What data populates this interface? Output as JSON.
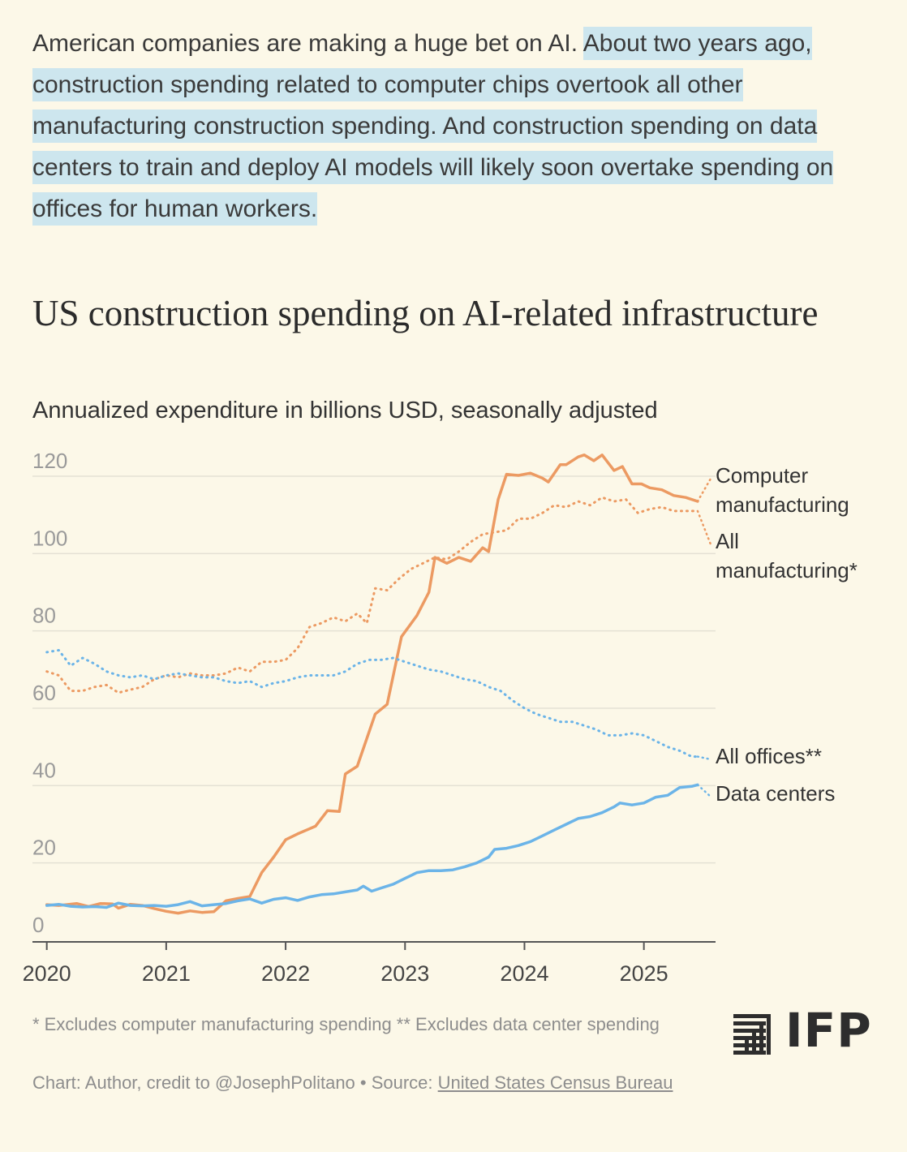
{
  "intro": {
    "plain": "American companies are making a huge bet on AI. ",
    "highlighted": "About two years ago, construction spending related to computer chips overtook all other manufacturing construction spending. And construction spending on data centers to train and deploy AI models will likely soon overtake spending on offices for human workers."
  },
  "colors": {
    "background": "#fcf8e8",
    "highlight": "#cde6ee",
    "orange": "#ec9a62",
    "blue": "#6bb4e8",
    "grid": "#e4e1d4",
    "tick": "#9a9a9a"
  },
  "chart_data": {
    "type": "line",
    "title": "US construction spending on AI-related infrastructure",
    "subtitle": "Annualized expenditure in billions USD, seasonally adjusted",
    "ylim": [
      0,
      120
    ],
    "yticks": [
      "0",
      "20",
      "40",
      "60",
      "80",
      "100",
      "120"
    ],
    "xlim": [
      2019.88,
      2025.6
    ],
    "xticks": [
      "2020",
      "2021",
      "2022",
      "2023",
      "2024",
      "2025"
    ],
    "grid": true,
    "series": [
      {
        "name": "Computer manufacturing",
        "label_lines": [
          "Computer",
          "manufacturing"
        ],
        "color": "orange",
        "style": "solid",
        "points": [
          [
            2020.0,
            9.2
          ],
          [
            2020.1,
            9.0
          ],
          [
            2020.25,
            9.5
          ],
          [
            2020.35,
            8.7
          ],
          [
            2020.45,
            9.5
          ],
          [
            2020.55,
            9.4
          ],
          [
            2020.6,
            8.3
          ],
          [
            2020.7,
            9.3
          ],
          [
            2020.8,
            9.0
          ],
          [
            2020.9,
            8.2
          ],
          [
            2021.0,
            7.5
          ],
          [
            2021.1,
            7.0
          ],
          [
            2021.2,
            7.6
          ],
          [
            2021.3,
            7.2
          ],
          [
            2021.4,
            7.4
          ],
          [
            2021.5,
            10.2
          ],
          [
            2021.6,
            10.8
          ],
          [
            2021.7,
            11.3
          ],
          [
            2021.8,
            17.5
          ],
          [
            2021.9,
            21.5
          ],
          [
            2022.0,
            26.0
          ],
          [
            2022.1,
            27.5
          ],
          [
            2022.25,
            29.5
          ],
          [
            2022.35,
            33.5
          ],
          [
            2022.45,
            33.3
          ],
          [
            2022.5,
            43.0
          ],
          [
            2022.6,
            45.0
          ],
          [
            2022.75,
            58.5
          ],
          [
            2022.85,
            61.0
          ],
          [
            2022.97,
            78.5
          ],
          [
            2023.1,
            84.0
          ],
          [
            2023.2,
            90.0
          ],
          [
            2023.25,
            99.0
          ],
          [
            2023.35,
            97.5
          ],
          [
            2023.45,
            99.0
          ],
          [
            2023.55,
            98.0
          ],
          [
            2023.65,
            101.5
          ],
          [
            2023.7,
            100.5
          ],
          [
            2023.78,
            114.0
          ],
          [
            2023.85,
            120.5
          ],
          [
            2023.95,
            120.2
          ],
          [
            2024.05,
            120.8
          ],
          [
            2024.15,
            119.5
          ],
          [
            2024.2,
            118.5
          ],
          [
            2024.3,
            123.0
          ],
          [
            2024.35,
            123.0
          ],
          [
            2024.45,
            125.0
          ],
          [
            2024.5,
            125.5
          ],
          [
            2024.58,
            124.0
          ],
          [
            2024.65,
            125.5
          ],
          [
            2024.75,
            121.5
          ],
          [
            2024.82,
            122.5
          ],
          [
            2024.9,
            118.0
          ],
          [
            2024.98,
            118.0
          ],
          [
            2025.05,
            117.0
          ],
          [
            2025.15,
            116.5
          ],
          [
            2025.25,
            115.0
          ],
          [
            2025.35,
            114.5
          ],
          [
            2025.45,
            113.5
          ]
        ]
      },
      {
        "name": "All manufacturing*",
        "label_lines": [
          "All",
          "manufacturing*"
        ],
        "color": "orange",
        "style": "dotted",
        "points": [
          [
            2020.0,
            69.5
          ],
          [
            2020.1,
            68.5
          ],
          [
            2020.2,
            64.5
          ],
          [
            2020.3,
            64.5
          ],
          [
            2020.4,
            65.5
          ],
          [
            2020.5,
            66.0
          ],
          [
            2020.6,
            64.0
          ],
          [
            2020.7,
            64.8
          ],
          [
            2020.8,
            65.5
          ],
          [
            2020.9,
            67.5
          ],
          [
            2021.0,
            68.5
          ],
          [
            2021.1,
            68.0
          ],
          [
            2021.2,
            69.0
          ],
          [
            2021.3,
            68.5
          ],
          [
            2021.4,
            68.5
          ],
          [
            2021.5,
            69.0
          ],
          [
            2021.6,
            70.5
          ],
          [
            2021.7,
            69.5
          ],
          [
            2021.8,
            72.0
          ],
          [
            2021.9,
            72.0
          ],
          [
            2022.0,
            72.5
          ],
          [
            2022.1,
            75.5
          ],
          [
            2022.2,
            81.0
          ],
          [
            2022.3,
            82.0
          ],
          [
            2022.4,
            83.5
          ],
          [
            2022.5,
            82.5
          ],
          [
            2022.6,
            84.5
          ],
          [
            2022.68,
            82.0
          ],
          [
            2022.75,
            91.0
          ],
          [
            2022.85,
            90.5
          ],
          [
            2022.95,
            93.5
          ],
          [
            2023.05,
            96.0
          ],
          [
            2023.15,
            97.5
          ],
          [
            2023.25,
            99.0
          ],
          [
            2023.35,
            98.5
          ],
          [
            2023.45,
            100.5
          ],
          [
            2023.55,
            103.0
          ],
          [
            2023.65,
            105.0
          ],
          [
            2023.75,
            105.5
          ],
          [
            2023.85,
            106.0
          ],
          [
            2023.95,
            109.0
          ],
          [
            2024.05,
            109.0
          ],
          [
            2024.15,
            110.5
          ],
          [
            2024.25,
            112.5
          ],
          [
            2024.35,
            112.0
          ],
          [
            2024.45,
            113.5
          ],
          [
            2024.55,
            112.5
          ],
          [
            2024.65,
            114.5
          ],
          [
            2024.75,
            113.5
          ],
          [
            2024.85,
            114.0
          ],
          [
            2024.95,
            110.5
          ],
          [
            2025.05,
            111.5
          ],
          [
            2025.15,
            112.0
          ],
          [
            2025.25,
            111.0
          ],
          [
            2025.35,
            111.0
          ],
          [
            2025.45,
            111.0
          ]
        ]
      },
      {
        "name": "All offices**",
        "label_lines": [
          "All offices**"
        ],
        "color": "blue",
        "style": "dotted",
        "points": [
          [
            2020.0,
            74.5
          ],
          [
            2020.1,
            75.0
          ],
          [
            2020.2,
            71.0
          ],
          [
            2020.3,
            73.0
          ],
          [
            2020.4,
            71.5
          ],
          [
            2020.5,
            69.5
          ],
          [
            2020.6,
            68.5
          ],
          [
            2020.7,
            68.0
          ],
          [
            2020.8,
            68.5
          ],
          [
            2020.9,
            67.5
          ],
          [
            2021.0,
            68.5
          ],
          [
            2021.1,
            69.0
          ],
          [
            2021.2,
            68.5
          ],
          [
            2021.3,
            68.0
          ],
          [
            2021.4,
            68.0
          ],
          [
            2021.5,
            67.0
          ],
          [
            2021.6,
            66.5
          ],
          [
            2021.7,
            67.0
          ],
          [
            2021.8,
            65.5
          ],
          [
            2021.9,
            66.5
          ],
          [
            2022.0,
            67.0
          ],
          [
            2022.1,
            68.0
          ],
          [
            2022.2,
            68.5
          ],
          [
            2022.3,
            68.5
          ],
          [
            2022.4,
            68.5
          ],
          [
            2022.5,
            69.5
          ],
          [
            2022.6,
            71.5
          ],
          [
            2022.7,
            72.5
          ],
          [
            2022.8,
            72.5
          ],
          [
            2022.9,
            73.0
          ],
          [
            2023.0,
            72.0
          ],
          [
            2023.1,
            71.0
          ],
          [
            2023.2,
            70.0
          ],
          [
            2023.3,
            69.5
          ],
          [
            2023.4,
            68.5
          ],
          [
            2023.5,
            67.5
          ],
          [
            2023.6,
            67.0
          ],
          [
            2023.7,
            65.5
          ],
          [
            2023.8,
            64.5
          ],
          [
            2023.9,
            62.0
          ],
          [
            2024.0,
            60.0
          ],
          [
            2024.1,
            58.5
          ],
          [
            2024.2,
            57.5
          ],
          [
            2024.3,
            56.5
          ],
          [
            2024.4,
            56.5
          ],
          [
            2024.5,
            55.5
          ],
          [
            2024.6,
            54.5
          ],
          [
            2024.7,
            53.0
          ],
          [
            2024.8,
            53.0
          ],
          [
            2024.9,
            53.5
          ],
          [
            2025.0,
            53.0
          ],
          [
            2025.1,
            51.5
          ],
          [
            2025.2,
            50.0
          ],
          [
            2025.3,
            49.0
          ],
          [
            2025.4,
            47.5
          ],
          [
            2025.45,
            47.5
          ]
        ]
      },
      {
        "name": "Data centers",
        "label_lines": [
          "Data centers"
        ],
        "color": "blue",
        "style": "solid",
        "points": [
          [
            2020.0,
            9.0
          ],
          [
            2020.1,
            9.3
          ],
          [
            2020.2,
            8.8
          ],
          [
            2020.3,
            8.6
          ],
          [
            2020.4,
            8.7
          ],
          [
            2020.5,
            8.5
          ],
          [
            2020.6,
            9.6
          ],
          [
            2020.7,
            9.0
          ],
          [
            2020.8,
            8.9
          ],
          [
            2020.9,
            9.0
          ],
          [
            2021.0,
            8.8
          ],
          [
            2021.1,
            9.2
          ],
          [
            2021.2,
            10.0
          ],
          [
            2021.3,
            8.9
          ],
          [
            2021.4,
            9.2
          ],
          [
            2021.5,
            9.5
          ],
          [
            2021.6,
            10.2
          ],
          [
            2021.7,
            10.7
          ],
          [
            2021.8,
            9.6
          ],
          [
            2021.9,
            10.6
          ],
          [
            2022.0,
            11.0
          ],
          [
            2022.1,
            10.3
          ],
          [
            2022.2,
            11.2
          ],
          [
            2022.3,
            11.8
          ],
          [
            2022.4,
            12.0
          ],
          [
            2022.5,
            12.5
          ],
          [
            2022.6,
            13.0
          ],
          [
            2022.65,
            14.0
          ],
          [
            2022.72,
            12.7
          ],
          [
            2022.8,
            13.5
          ],
          [
            2022.9,
            14.5
          ],
          [
            2023.0,
            16.0
          ],
          [
            2023.1,
            17.5
          ],
          [
            2023.2,
            18.0
          ],
          [
            2023.3,
            18.0
          ],
          [
            2023.4,
            18.2
          ],
          [
            2023.5,
            19.0
          ],
          [
            2023.6,
            20.0
          ],
          [
            2023.7,
            21.5
          ],
          [
            2023.75,
            23.5
          ],
          [
            2023.85,
            23.8
          ],
          [
            2023.95,
            24.5
          ],
          [
            2024.05,
            25.5
          ],
          [
            2024.15,
            27.0
          ],
          [
            2024.25,
            28.5
          ],
          [
            2024.35,
            30.0
          ],
          [
            2024.45,
            31.5
          ],
          [
            2024.55,
            32.0
          ],
          [
            2024.65,
            33.0
          ],
          [
            2024.75,
            34.5
          ],
          [
            2024.8,
            35.5
          ],
          [
            2024.9,
            35.0
          ],
          [
            2025.0,
            35.5
          ],
          [
            2025.1,
            37.0
          ],
          [
            2025.2,
            37.5
          ],
          [
            2025.3,
            39.5
          ],
          [
            2025.4,
            39.8
          ],
          [
            2025.45,
            40.2
          ]
        ]
      }
    ]
  },
  "notes": {
    "footnote": "* Excludes computer manufacturing spending ** Excludes data center spending",
    "credit_prefix": "Chart: Author, credit to @JosephPolitano • Source: ",
    "source_link": "United States Census Bureau"
  },
  "logo": {
    "text": "IFP",
    "icon": "bars-logo-icon"
  }
}
